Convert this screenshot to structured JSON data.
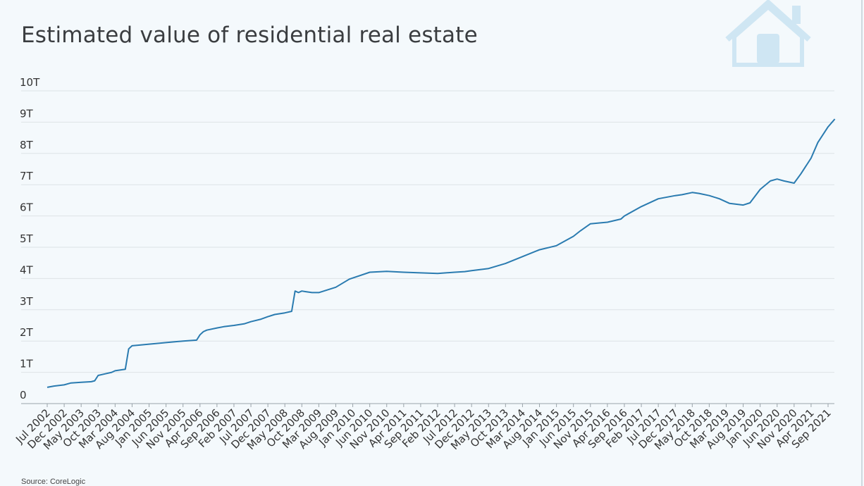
{
  "chart_data": {
    "type": "line",
    "title": "Estimated value of residential real estate",
    "xlabel": "",
    "ylabel": "",
    "y_ticks": [
      "0",
      "1T",
      "2T",
      "3T",
      "4T",
      "5T",
      "6T",
      "7T",
      "8T",
      "9T",
      "10T"
    ],
    "ylim": [
      0,
      10
    ],
    "x_ticks": [
      "Jul 2002",
      "Dec 2002",
      "May 2003",
      "Oct 2003",
      "Mar 2004",
      "Aug 2004",
      "Jan 2005",
      "Jun 2005",
      "Nov 2005",
      "Apr 2006",
      "Sep 2006",
      "Feb 2007",
      "Jul 2007",
      "Dec 2007",
      "May 2008",
      "Oct 2008",
      "Mar 2009",
      "Aug 2009",
      "Jan 2010",
      "Jun 2010",
      "Nov 2010",
      "Apr 2011",
      "Sep 2011",
      "Feb 2012",
      "Jul 2012",
      "Dec 2012",
      "May 2013",
      "Oct 2013",
      "Mar 2014",
      "Aug 2014",
      "Jan 2015",
      "Jun 2015",
      "Nov 2015",
      "Apr 2016",
      "Sep 2016",
      "Feb 2017",
      "Jul 2017",
      "Dec 2017",
      "May 2018",
      "Oct 2018",
      "Mar 2019",
      "Aug 2019",
      "Jan 2020",
      "Jun 2020",
      "Nov 2020",
      "Apr 2021",
      "Sep 2021"
    ],
    "grid": true,
    "line_color": "#2a7bb0",
    "series": [
      {
        "x": [
          "Jul 2002",
          "Sep 2002",
          "Dec 2002",
          "Feb 2003",
          "May 2003",
          "Aug 2003",
          "Sep 2003",
          "Oct 2003",
          "Dec 2003",
          "Feb 2004",
          "Mar 2004",
          "Jun 2004",
          "Jul 2004",
          "Aug 2004",
          "Oct 2004",
          "Jan 2005",
          "Mar 2005",
          "Jun 2005",
          "Aug 2005",
          "Nov 2005",
          "Mar 2006",
          "Apr 2006",
          "May 2006",
          "Jun 2006",
          "Sep 2006",
          "Nov 2006",
          "Feb 2007",
          "May 2007",
          "Jul 2007",
          "Oct 2007",
          "Dec 2007",
          "Feb 2008",
          "May 2008",
          "Jul 2008",
          "Aug 2008",
          "Sep 2008",
          "Oct 2008",
          "Nov 2008",
          "Jan 2009",
          "Mar 2009",
          "Aug 2009",
          "Dec 2009",
          "Jun 2010",
          "Nov 2010",
          "Apr 2011",
          "Sep 2011",
          "Feb 2012",
          "Jul 2012",
          "Oct 2012",
          "Dec 2012",
          "May 2013",
          "Oct 2013",
          "Mar 2014",
          "Aug 2014",
          "Jan 2015",
          "Jun 2015",
          "Aug 2015",
          "Nov 2015",
          "Feb 2016",
          "Apr 2016",
          "Aug 2016",
          "Sep 2016",
          "Feb 2017",
          "Jul 2017",
          "Dec 2017",
          "Feb 2018",
          "May 2018",
          "Jul 2018",
          "Oct 2018",
          "Jan 2019",
          "Apr 2019",
          "Aug 2019",
          "Oct 2019",
          "Jan 2020",
          "Apr 2020",
          "Jun 2020",
          "Aug 2020",
          "Nov 2020",
          "Jan 2021",
          "Apr 2021",
          "Jun 2021",
          "Sep 2021",
          "Nov 2021"
        ],
        "y": [
          0.52,
          0.56,
          0.6,
          0.66,
          0.68,
          0.7,
          0.73,
          0.9,
          0.95,
          1.0,
          1.05,
          1.1,
          1.75,
          1.85,
          1.87,
          1.9,
          1.92,
          1.95,
          1.97,
          2.0,
          2.03,
          2.2,
          2.3,
          2.35,
          2.42,
          2.46,
          2.5,
          2.55,
          2.62,
          2.7,
          2.78,
          2.85,
          2.9,
          2.95,
          3.6,
          3.55,
          3.6,
          3.58,
          3.55,
          3.55,
          3.72,
          3.98,
          4.2,
          4.23,
          4.2,
          4.18,
          4.16,
          4.2,
          4.22,
          4.25,
          4.32,
          4.48,
          4.7,
          4.92,
          5.05,
          5.35,
          5.52,
          5.75,
          5.78,
          5.8,
          5.9,
          6.0,
          6.3,
          6.55,
          6.65,
          6.68,
          6.75,
          6.72,
          6.65,
          6.55,
          6.4,
          6.35,
          6.42,
          6.85,
          7.12,
          7.18,
          7.12,
          7.05,
          7.35,
          7.85,
          8.35,
          8.85,
          9.1
        ]
      }
    ]
  },
  "source": "Source: CoreLogic",
  "icon": "house-icon"
}
